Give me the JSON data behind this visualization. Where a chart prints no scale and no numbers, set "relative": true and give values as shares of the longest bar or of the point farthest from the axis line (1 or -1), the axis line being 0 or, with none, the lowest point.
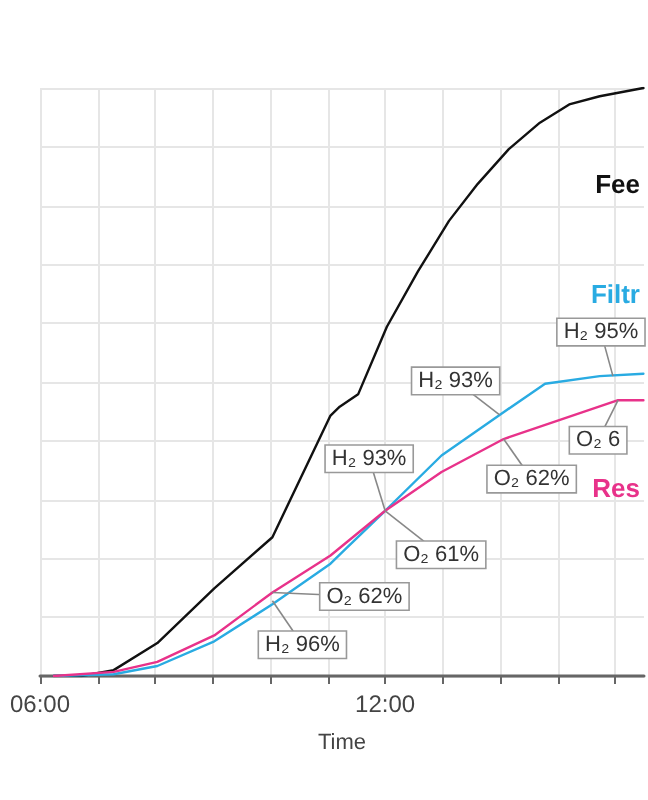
{
  "chart_data": {
    "type": "line",
    "xlabel": "Time",
    "relative": true,
    "grid": true,
    "legend": false,
    "marker": "none",
    "line_style": "solid",
    "xlim": [
      6,
      16.5
    ],
    "xticks": [
      {
        "value": 6,
        "label": "06:00"
      },
      {
        "value": 7,
        "label": null
      },
      {
        "value": 8,
        "label": null
      },
      {
        "value": 9,
        "label": null
      },
      {
        "value": 10,
        "label": null
      },
      {
        "value": 11,
        "label": null
      },
      {
        "value": 12,
        "label": "12:00"
      },
      {
        "value": 13,
        "label": null
      },
      {
        "value": 14,
        "label": null
      },
      {
        "value": 15,
        "label": null
      },
      {
        "value": 16,
        "label": null
      }
    ],
    "series": [
      {
        "name": "Fee",
        "color": "#111111",
        "x": [
          6.24,
          6.72,
          7.28,
          8.04,
          9.03,
          10.04,
          11.05,
          11.21,
          11.53,
          12.03,
          12.57,
          13.11,
          13.61,
          14.15,
          14.69,
          15.2,
          15.73,
          16.49
        ],
        "values": [
          0,
          0,
          0.01,
          0.056,
          0.149,
          0.236,
          0.443,
          0.458,
          0.479,
          0.594,
          0.688,
          0.774,
          0.837,
          0.896,
          0.941,
          0.972,
          0.986,
          1
        ]
      },
      {
        "name": "Filtr",
        "color": "#29abe2",
        "x": [
          6.24,
          7.28,
          8.04,
          9.03,
          10.04,
          11.05,
          11.3,
          12.0,
          12.98,
          13.99,
          14.78,
          15.73,
          16.49
        ],
        "values": [
          0,
          0.003,
          0.017,
          0.059,
          0.122,
          0.191,
          0.215,
          0.281,
          0.375,
          0.444,
          0.497,
          0.51,
          0.514
        ]
      },
      {
        "name": "Res",
        "color": "#e8328a",
        "x": [
          6.24,
          7.28,
          8.04,
          9.03,
          10.04,
          11.05,
          12.0,
          12.98,
          14.06,
          16.05,
          16.49
        ],
        "values": [
          0,
          0.007,
          0.024,
          0.069,
          0.142,
          0.205,
          0.281,
          0.347,
          0.403,
          0.469,
          0.469
        ]
      }
    ],
    "annotations": [
      {
        "text": "H₂ 96%",
        "x": 10.04,
        "y": 0.128
      },
      {
        "text": "O₂ 62%",
        "x": 10.04,
        "y": 0.142
      },
      {
        "text": "H₂ 93%",
        "x": 12.0,
        "y": 0.281
      },
      {
        "text": "O₂ 61%",
        "x": 12.0,
        "y": 0.281
      },
      {
        "text": "H₂ 93%",
        "x": 13.99,
        "y": 0.444
      },
      {
        "text": "O₂ 62%",
        "x": 14.06,
        "y": 0.403
      },
      {
        "text": "H₂ 95%",
        "x": 15.96,
        "y": 0.51
      },
      {
        "text": "O₂ 6",
        "x": 16.05,
        "y": 0.469
      }
    ]
  }
}
